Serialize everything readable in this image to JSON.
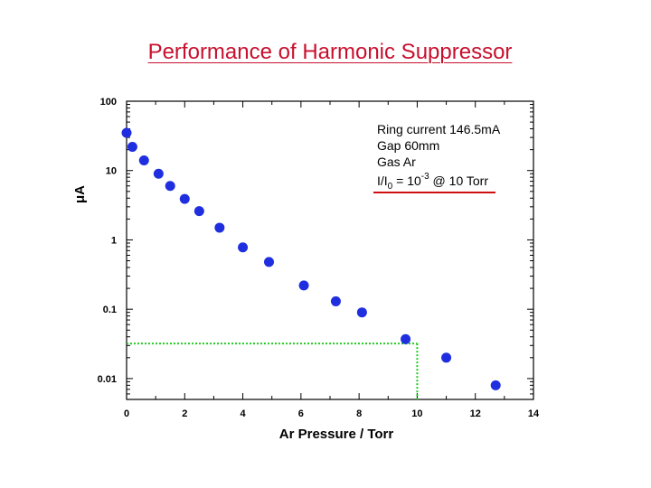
{
  "chart_data": {
    "type": "scatter",
    "title": "Performance of Harmonic Suppressor",
    "xlabel": "Ar  Pressure / Torr",
    "ylabel": "μA",
    "xlim": [
      0,
      14
    ],
    "ylim": [
      0.005,
      100
    ],
    "y_scale": "log",
    "x_ticks": [
      0,
      2,
      4,
      6,
      8,
      10,
      12,
      14
    ],
    "y_ticks": [
      {
        "value": 100,
        "label": "100"
      },
      {
        "value": 10,
        "label": "10"
      },
      {
        "value": 1,
        "label": "1"
      },
      {
        "value": 0.1,
        "label": "0.1"
      },
      {
        "value": 0.01,
        "label": "0.01"
      }
    ],
    "grid": false,
    "marker_color": "#1f2fe0",
    "points": [
      {
        "x": 0.0,
        "y": 35
      },
      {
        "x": 0.2,
        "y": 22
      },
      {
        "x": 0.6,
        "y": 14
      },
      {
        "x": 1.1,
        "y": 9
      },
      {
        "x": 1.5,
        "y": 6
      },
      {
        "x": 2.0,
        "y": 3.9
      },
      {
        "x": 2.5,
        "y": 2.6
      },
      {
        "x": 3.2,
        "y": 1.5
      },
      {
        "x": 4.0,
        "y": 0.78
      },
      {
        "x": 4.9,
        "y": 0.48
      },
      {
        "x": 6.1,
        "y": 0.22
      },
      {
        "x": 7.2,
        "y": 0.13
      },
      {
        "x": 8.1,
        "y": 0.09
      },
      {
        "x": 9.6,
        "y": 0.037
      },
      {
        "x": 11.0,
        "y": 0.02
      },
      {
        "x": 12.7,
        "y": 0.008
      }
    ],
    "guide_line": {
      "x": 10,
      "y": 0.032,
      "color": "#22cc22"
    },
    "annotation": {
      "line1": "Ring current 146.5mA",
      "line2": "Gap  60mm",
      "line3": "Gas  Ar",
      "line4_a": "I/I",
      "line4_sub": "0",
      "line4_b": " = 10",
      "line4_sup": "-3",
      "line4_c": " @ 10 Torr",
      "underline_color": "#d01010"
    }
  }
}
